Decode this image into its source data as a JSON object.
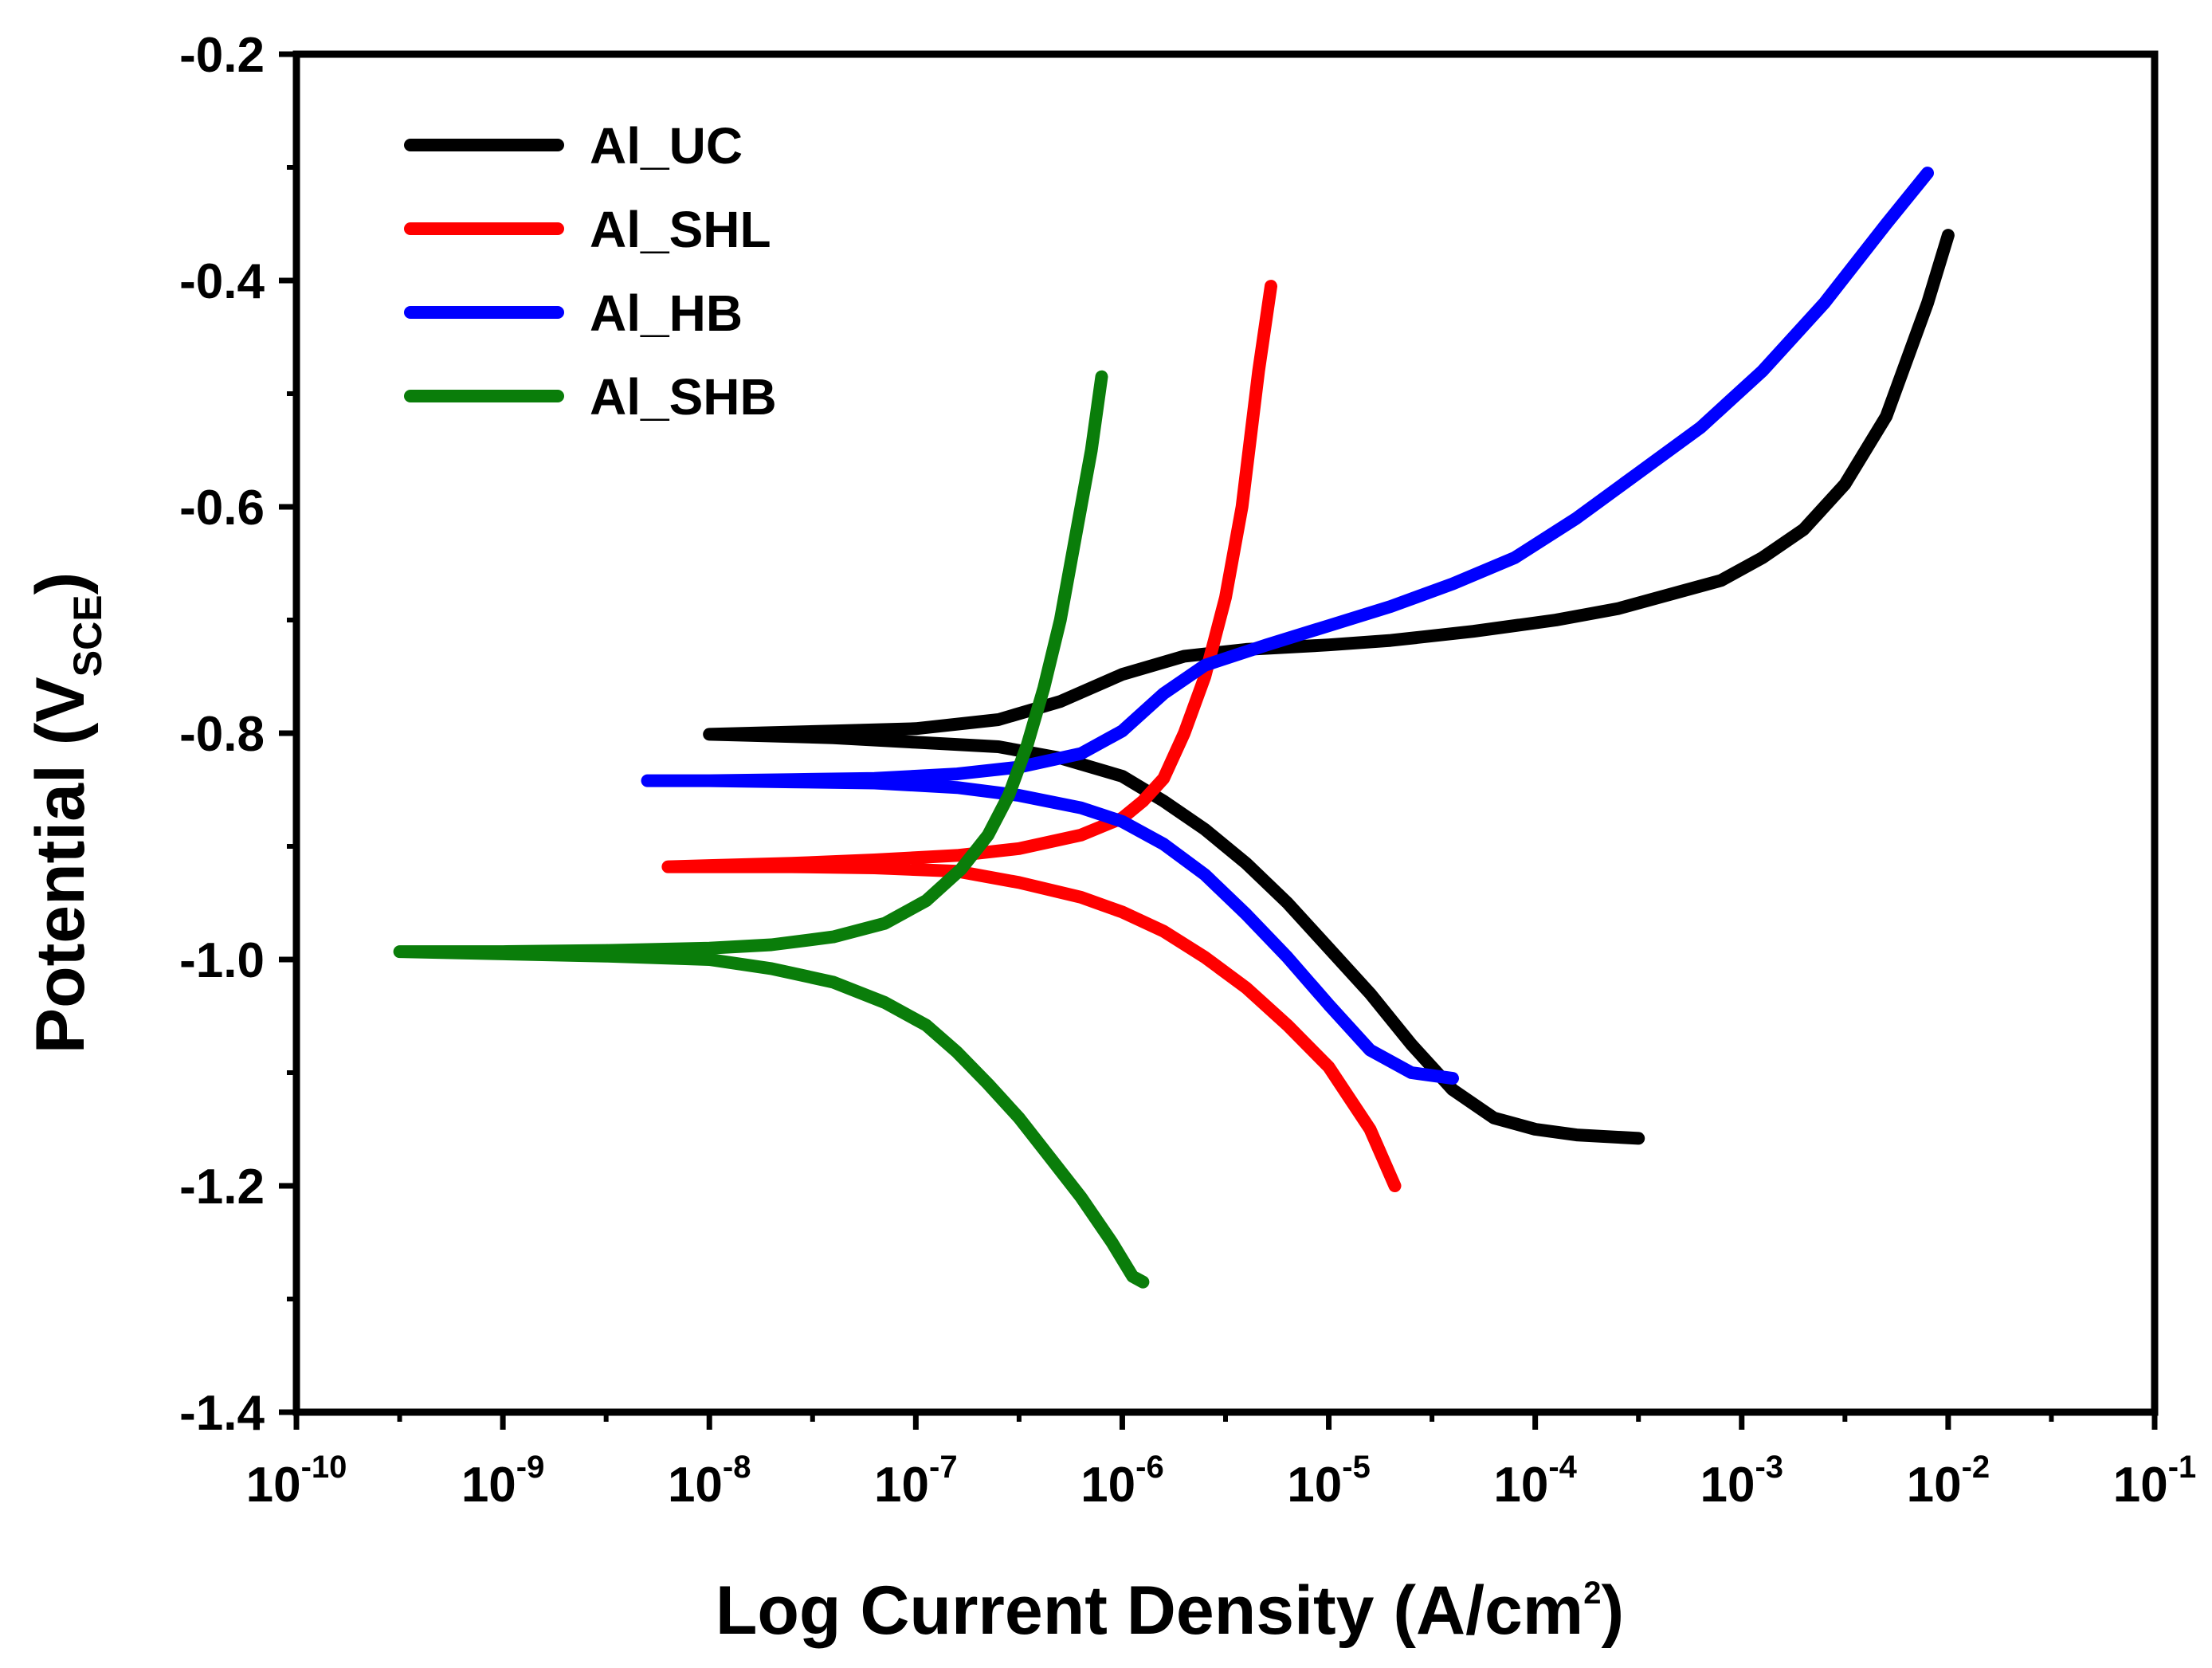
{
  "chart_data": {
    "type": "line",
    "title": "",
    "xlabel": "Log Current Density (A/cm2)",
    "xlabel_main": "Log Current Density (A/cm",
    "xlabel_sup": "2",
    "xlabel_tail": ")",
    "ylabel": "Potential (VSCE)",
    "ylabel_main": "Potential (V",
    "ylabel_sub": "SCE",
    "ylabel_tail": ")",
    "xscale": "log",
    "xlim_exp": [
      -10,
      -1
    ],
    "ylim": [
      -1.4,
      -0.2
    ],
    "y_ticks": [
      -0.2,
      -0.4,
      -0.6,
      -0.8,
      -1.0,
      -1.2,
      -1.4
    ],
    "y_tick_labels": [
      "-0.2",
      "-0.4",
      "-0.6",
      "-0.8",
      "-1.0",
      "-1.2",
      "-1.4"
    ],
    "x_ticks_exp": [
      -10,
      -9,
      -8,
      -7,
      -6,
      -5,
      -4,
      -3,
      -2,
      -1
    ],
    "x_tick_labels": [
      {
        "base": "10",
        "exp": "-10"
      },
      {
        "base": "10",
        "exp": "-9"
      },
      {
        "base": "10",
        "exp": "-8"
      },
      {
        "base": "10",
        "exp": "-7"
      },
      {
        "base": "10",
        "exp": "-6"
      },
      {
        "base": "10",
        "exp": "-5"
      },
      {
        "base": "10",
        "exp": "-4"
      },
      {
        "base": "10",
        "exp": "-3"
      },
      {
        "base": "10",
        "exp": "-2"
      },
      {
        "base": "10",
        "exp": "-1"
      }
    ],
    "legend_position": "top-left",
    "series": [
      {
        "name": "Al_UC",
        "color": "#000000",
        "log_i": [
          -2.0,
          -2.1,
          -2.3,
          -2.5,
          -2.7,
          -2.9,
          -3.1,
          -3.3,
          -3.6,
          -3.9,
          -4.3,
          -4.7,
          -5.0,
          -5.4,
          -5.7,
          -6.0,
          -6.3,
          -6.6,
          -7.0,
          -7.4,
          -7.8,
          -8.0,
          -7.8,
          -7.4,
          -7.0,
          -6.6,
          -6.3,
          -6.0,
          -5.8,
          -5.6,
          -5.4,
          -5.2,
          -5.0,
          -4.8,
          -4.6,
          -4.4,
          -4.2,
          -4.0,
          -3.8,
          -3.5
        ],
        "potential": [
          -0.36,
          -0.42,
          -0.52,
          -0.58,
          -0.62,
          -0.645,
          -0.665,
          -0.675,
          -0.69,
          -0.7,
          -0.71,
          -0.718,
          -0.722,
          -0.726,
          -0.732,
          -0.748,
          -0.772,
          -0.788,
          -0.796,
          -0.798,
          -0.8,
          -0.801,
          -0.802,
          -0.804,
          -0.808,
          -0.812,
          -0.822,
          -0.838,
          -0.86,
          -0.885,
          -0.915,
          -0.95,
          -0.99,
          -1.03,
          -1.075,
          -1.115,
          -1.14,
          -1.15,
          -1.155,
          -1.158
        ]
      },
      {
        "name": "Al_SHL",
        "color": "#ff0000",
        "log_i": [
          -5.28,
          -5.34,
          -5.42,
          -5.5,
          -5.6,
          -5.7,
          -5.8,
          -5.9,
          -6.0,
          -6.2,
          -6.5,
          -6.8,
          -7.2,
          -7.6,
          -8.0,
          -8.2,
          -8.0,
          -7.6,
          -7.2,
          -6.8,
          -6.5,
          -6.2,
          -6.0,
          -5.8,
          -5.6,
          -5.4,
          -5.2,
          -5.0,
          -4.8,
          -4.68
        ],
        "potential": [
          -0.405,
          -0.48,
          -0.6,
          -0.68,
          -0.75,
          -0.8,
          -0.84,
          -0.86,
          -0.875,
          -0.89,
          -0.902,
          -0.908,
          -0.912,
          -0.915,
          -0.917,
          -0.918,
          -0.918,
          -0.918,
          -0.919,
          -0.922,
          -0.932,
          -0.945,
          -0.958,
          -0.975,
          -0.998,
          -1.025,
          -1.058,
          -1.095,
          -1.15,
          -1.2
        ]
      },
      {
        "name": "Al_HB",
        "color": "#0000ff",
        "log_i": [
          -2.1,
          -2.3,
          -2.6,
          -2.9,
          -3.2,
          -3.5,
          -3.8,
          -4.1,
          -4.4,
          -4.7,
          -5.0,
          -5.3,
          -5.6,
          -5.8,
          -6.0,
          -6.2,
          -6.5,
          -6.8,
          -7.2,
          -7.6,
          -8.0,
          -8.3,
          -8.0,
          -7.6,
          -7.2,
          -6.8,
          -6.5,
          -6.2,
          -6.0,
          -5.8,
          -5.6,
          -5.4,
          -5.2,
          -5.0,
          -4.8,
          -4.6,
          -4.4
        ],
        "potential": [
          -0.305,
          -0.35,
          -0.42,
          -0.48,
          -0.53,
          -0.57,
          -0.61,
          -0.645,
          -0.668,
          -0.688,
          -0.705,
          -0.722,
          -0.74,
          -0.765,
          -0.798,
          -0.818,
          -0.83,
          -0.836,
          -0.84,
          -0.841,
          -0.842,
          -0.842,
          -0.842,
          -0.843,
          -0.844,
          -0.848,
          -0.855,
          -0.866,
          -0.878,
          -0.898,
          -0.925,
          -0.96,
          -0.998,
          -1.04,
          -1.08,
          -1.1,
          -1.105
        ]
      },
      {
        "name": "Al_SHB",
        "color": "#0a7d0a",
        "log_i": [
          -6.1,
          -6.15,
          -6.22,
          -6.3,
          -6.38,
          -6.46,
          -6.55,
          -6.65,
          -6.78,
          -6.95,
          -7.15,
          -7.4,
          -7.7,
          -8.0,
          -8.5,
          -9.0,
          -9.5,
          -9.0,
          -8.5,
          -8.0,
          -7.7,
          -7.4,
          -7.15,
          -6.95,
          -6.8,
          -6.65,
          -6.5,
          -6.35,
          -6.2,
          -6.05,
          -5.95,
          -5.9
        ],
        "potential": [
          -0.485,
          -0.55,
          -0.62,
          -0.7,
          -0.76,
          -0.81,
          -0.855,
          -0.89,
          -0.92,
          -0.948,
          -0.968,
          -0.98,
          -0.987,
          -0.99,
          -0.992,
          -0.993,
          -0.993,
          -0.995,
          -0.997,
          -1.0,
          -1.008,
          -1.02,
          -1.038,
          -1.058,
          -1.082,
          -1.11,
          -1.14,
          -1.175,
          -1.21,
          -1.25,
          -1.28,
          -1.285
        ]
      }
    ]
  }
}
